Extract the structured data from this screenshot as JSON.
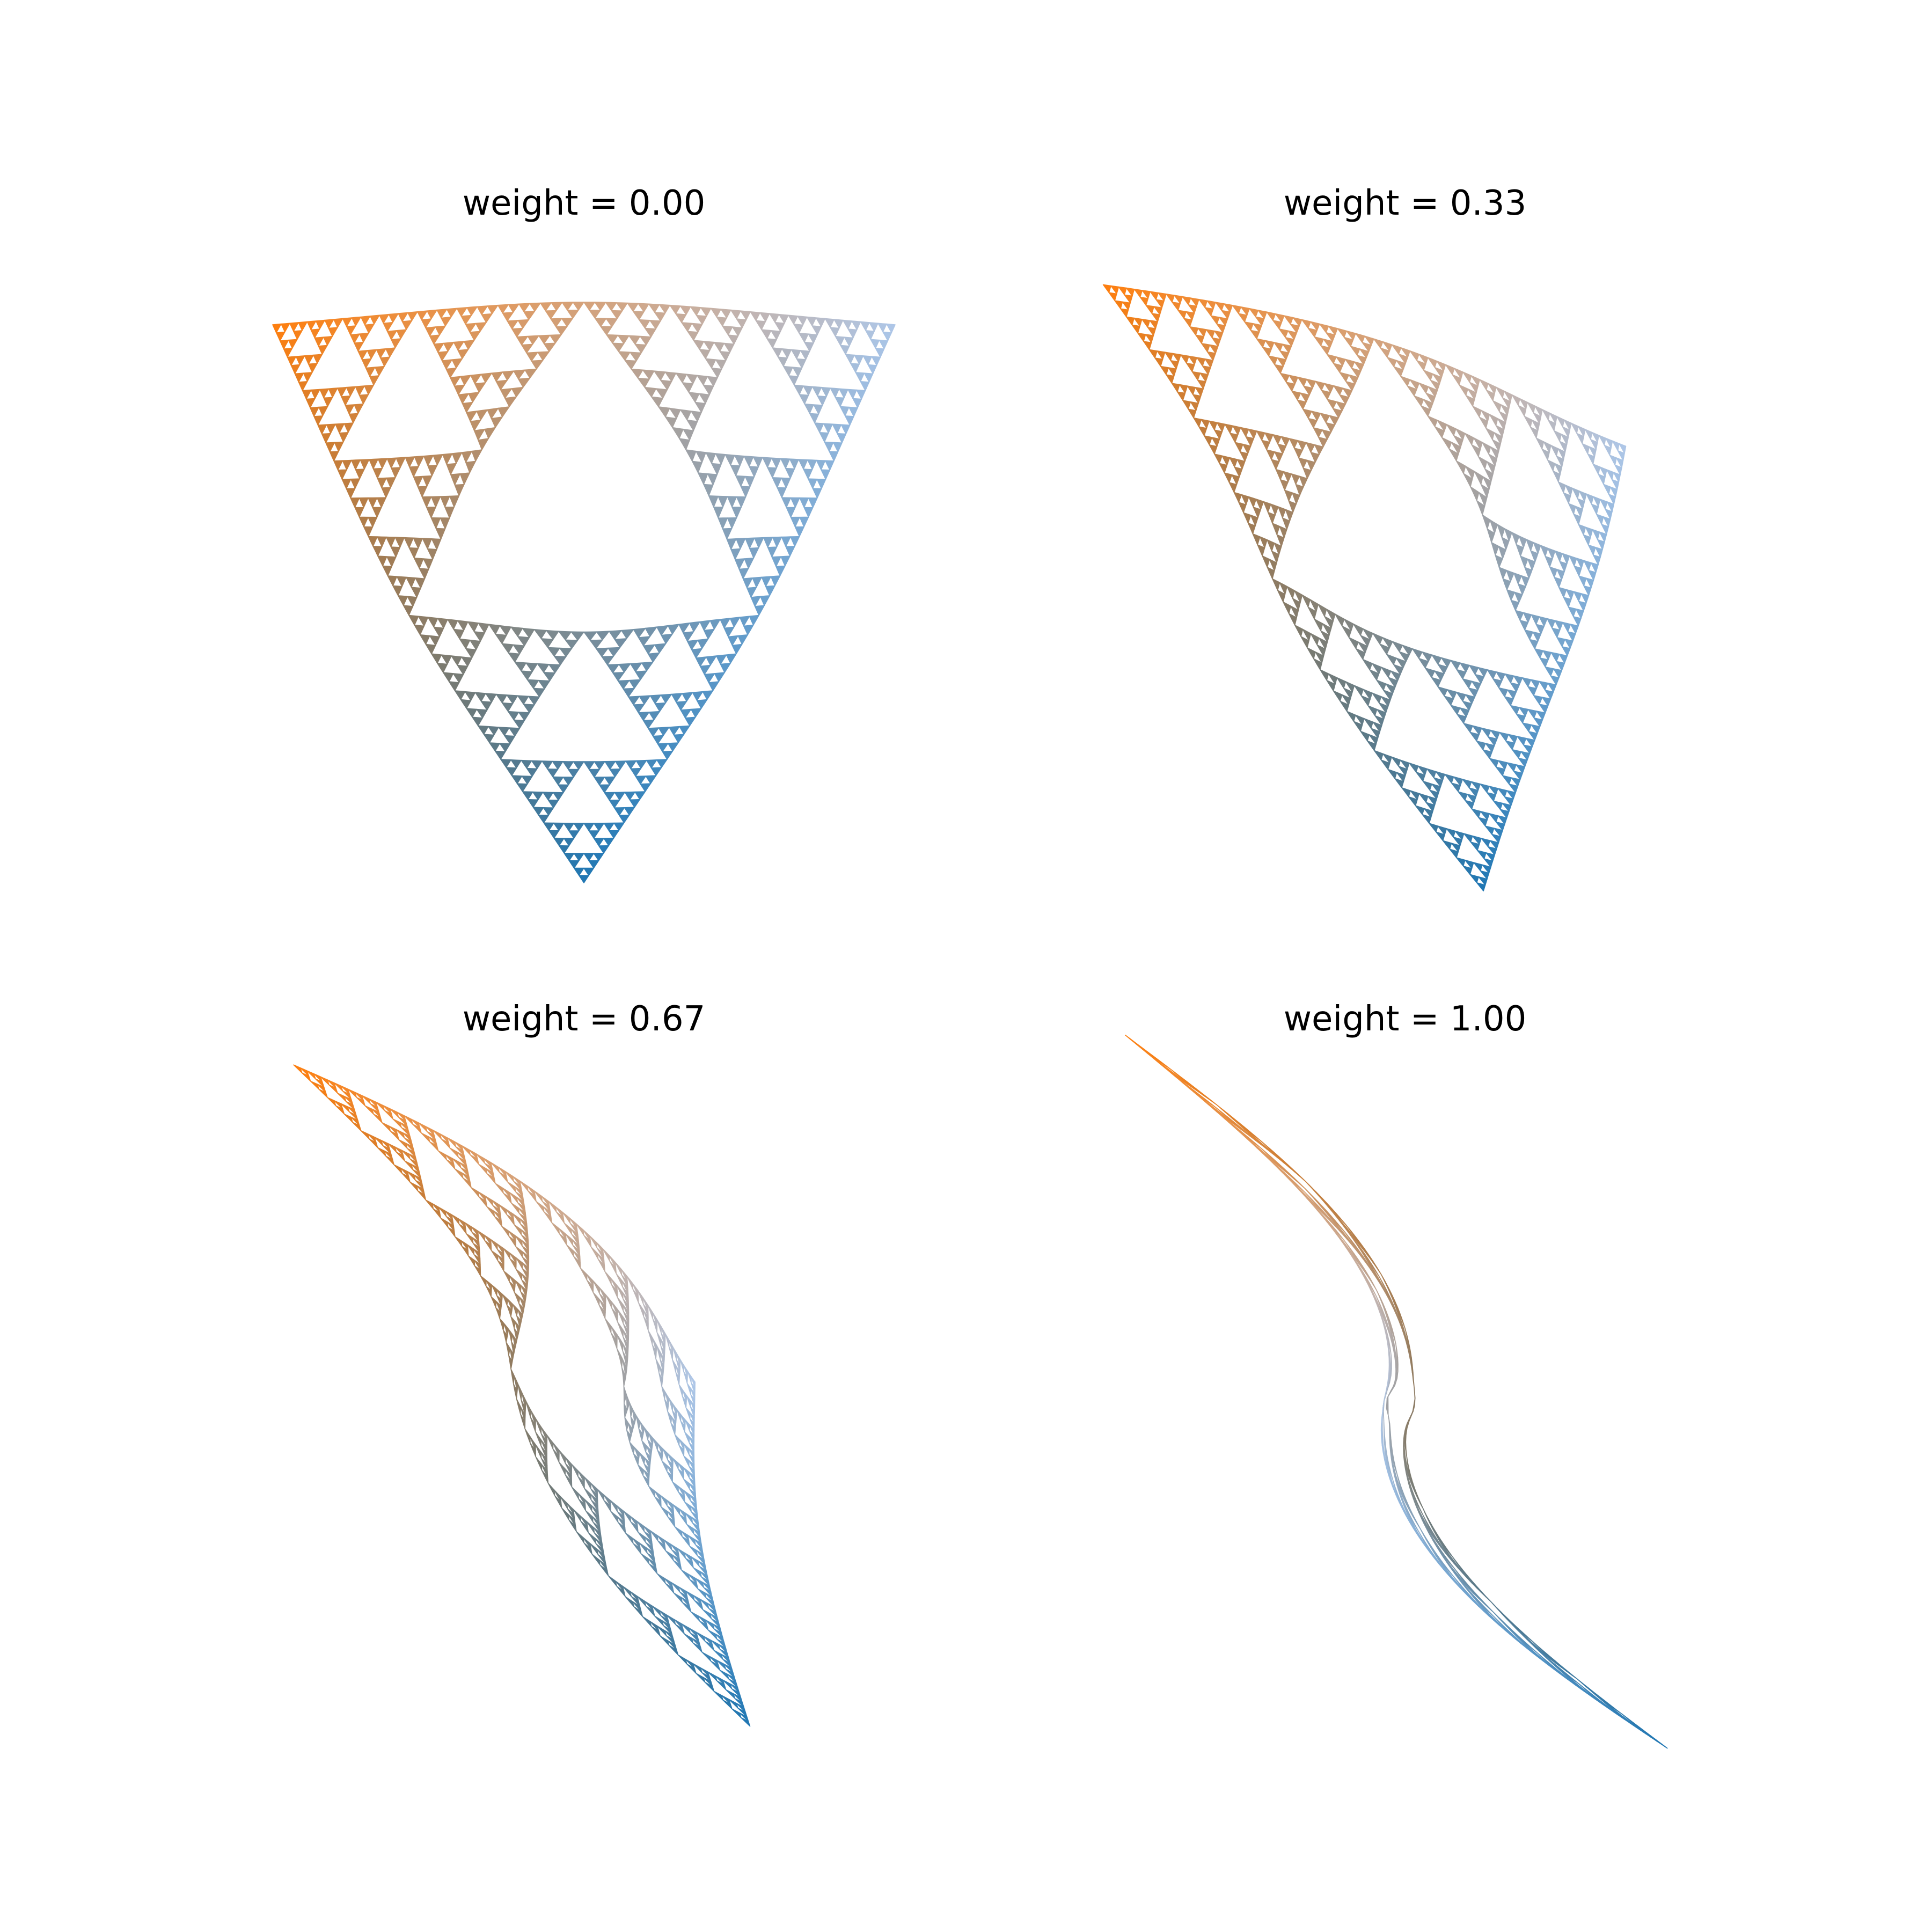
{
  "chart_data": [
    {
      "type": "scatter",
      "title": "weight = 0.00",
      "weight": 0.0,
      "axis": "off",
      "grid": false,
      "colors": {
        "corner_a": "#ff7f0e",
        "corner_b": "#aec7e8",
        "corner_c": "#1f77b4"
      }
    },
    {
      "type": "scatter",
      "title": "weight = 0.33",
      "weight": 0.33,
      "axis": "off",
      "grid": false,
      "colors": {
        "corner_a": "#ff7f0e",
        "corner_b": "#aec7e8",
        "corner_c": "#1f77b4"
      }
    },
    {
      "type": "scatter",
      "title": "weight = 0.67",
      "weight": 0.67,
      "axis": "off",
      "grid": false,
      "colors": {
        "corner_a": "#ff7f0e",
        "corner_b": "#aec7e8",
        "corner_c": "#1f77b4"
      }
    },
    {
      "type": "scatter",
      "title": "weight = 1.00",
      "weight": 1.0,
      "axis": "off",
      "grid": false,
      "colors": {
        "corner_a": "#ff7f0e",
        "corner_b": "#aec7e8",
        "corner_c": "#1f77b4"
      }
    }
  ]
}
